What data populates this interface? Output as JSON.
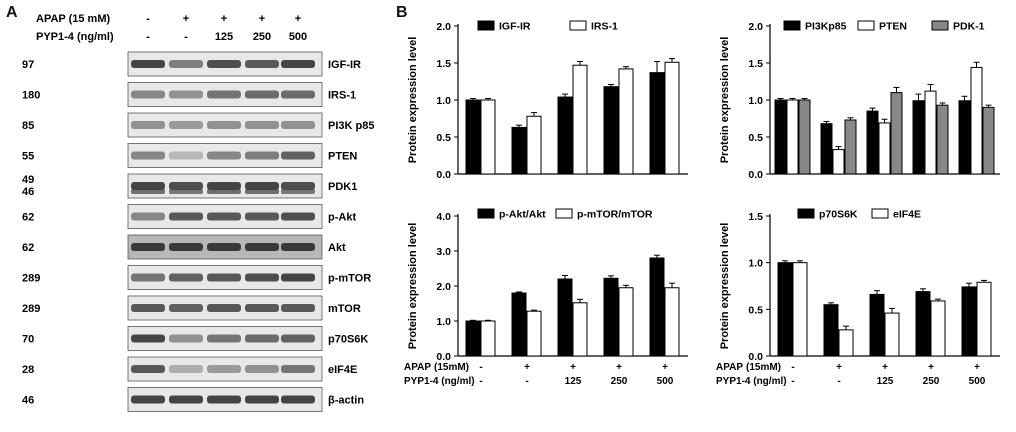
{
  "panel_a": {
    "letter": "A",
    "treatment_rows": [
      {
        "label": "APAP  (15 mM)",
        "values": [
          "-",
          "+",
          "+",
          "+",
          "+"
        ]
      },
      {
        "label": "PYP1-4 (ng/ml)",
        "values": [
          "-",
          "-",
          "125",
          "250",
          "500"
        ]
      }
    ],
    "blots": [
      {
        "mw": "97",
        "protein": "IGF-IR",
        "intensity": [
          0.85,
          0.55,
          0.8,
          0.75,
          0.85
        ]
      },
      {
        "mw": "180",
        "protein": "IRS-1",
        "intensity": [
          0.5,
          0.45,
          0.6,
          0.65,
          0.65
        ]
      },
      {
        "mw": "85",
        "protein": "PI3K p85",
        "intensity": [
          0.45,
          0.4,
          0.45,
          0.45,
          0.45
        ]
      },
      {
        "mw": "55",
        "protein": "PTEN",
        "intensity": [
          0.5,
          0.25,
          0.5,
          0.55,
          0.7
        ]
      },
      {
        "mw": "49\n46",
        "protein": "PDK1",
        "intensity": [
          0.85,
          0.8,
          0.85,
          0.85,
          0.8
        ]
      },
      {
        "mw": "62",
        "protein": "p-Akt",
        "intensity": [
          0.5,
          0.75,
          0.75,
          0.75,
          0.8
        ]
      },
      {
        "mw": "62",
        "protein": "Akt",
        "intensity": [
          0.9,
          0.9,
          0.9,
          0.9,
          0.9
        ]
      },
      {
        "mw": "289",
        "protein": "p-mTOR",
        "intensity": [
          0.6,
          0.7,
          0.75,
          0.8,
          0.85
        ]
      },
      {
        "mw": "289",
        "protein": "mTOR",
        "intensity": [
          0.75,
          0.7,
          0.75,
          0.75,
          0.75
        ]
      },
      {
        "mw": "70",
        "protein": "p70S6K",
        "intensity": [
          0.85,
          0.45,
          0.6,
          0.65,
          0.7
        ]
      },
      {
        "mw": "28",
        "protein": "eIF4E",
        "intensity": [
          0.75,
          0.3,
          0.4,
          0.45,
          0.6
        ]
      },
      {
        "mw": "46",
        "protein": "β-actin",
        "intensity": [
          0.85,
          0.85,
          0.85,
          0.85,
          0.85
        ]
      }
    ]
  },
  "panel_b": {
    "letter": "B"
  },
  "x_conditions": {
    "apap_label": "APAP",
    "apap_unit": "(15mM)",
    "apap_values": [
      "-",
      "+",
      "+",
      "+",
      "+"
    ],
    "pyp_label": "PYP1-4 (ng/ml)",
    "pyp_values": [
      "-",
      "-",
      "125",
      "250",
      "500"
    ]
  },
  "chart_data": [
    {
      "type": "bar",
      "ylabel": "Protein expression level",
      "ylim": [
        0,
        2.0
      ],
      "yticks": [
        "0.0",
        "0.5",
        "1.0",
        "1.5",
        "2.0"
      ],
      "legend_position": "top-left",
      "series": [
        {
          "name": "IGF-IR",
          "color": "#000000",
          "values": [
            1.0,
            0.63,
            1.04,
            1.18,
            1.37
          ],
          "errors": [
            0.02,
            0.03,
            0.04,
            0.03,
            0.15
          ]
        },
        {
          "name": "IRS-1",
          "color": "#ffffff",
          "values": [
            1.0,
            0.78,
            1.47,
            1.42,
            1.51
          ],
          "errors": [
            0.02,
            0.05,
            0.05,
            0.03,
            0.05
          ]
        }
      ]
    },
    {
      "type": "bar",
      "ylabel": "Protein expression level",
      "ylim": [
        0,
        2.0
      ],
      "yticks": [
        "0.0",
        "0.5",
        "1.0",
        "1.5",
        "2.0"
      ],
      "legend_position": "top",
      "series": [
        {
          "name": "PI3Kp85",
          "color": "#000000",
          "values": [
            1.0,
            0.68,
            0.85,
            0.99,
            0.99
          ],
          "errors": [
            0.02,
            0.03,
            0.04,
            0.09,
            0.06
          ]
        },
        {
          "name": "PTEN",
          "color": "#ffffff",
          "values": [
            1.0,
            0.33,
            0.69,
            1.12,
            1.44
          ],
          "errors": [
            0.02,
            0.04,
            0.05,
            0.09,
            0.07
          ]
        },
        {
          "name": "PDK-1",
          "color": "#888888",
          "values": [
            1.0,
            0.73,
            1.1,
            0.93,
            0.9
          ],
          "errors": [
            0.02,
            0.03,
            0.07,
            0.03,
            0.03
          ]
        }
      ]
    },
    {
      "type": "bar",
      "ylabel": "Protein expression level",
      "ylim": [
        0,
        4.0
      ],
      "yticks": [
        "0.0",
        "1.0",
        "2.0",
        "3.0",
        "4.0"
      ],
      "legend_position": "top-left",
      "series": [
        {
          "name": "p-Akt/Akt",
          "color": "#000000",
          "values": [
            1.0,
            1.8,
            2.2,
            2.22,
            2.8
          ],
          "errors": [
            0.02,
            0.03,
            0.1,
            0.07,
            0.08
          ]
        },
        {
          "name": "p-mTOR/mTOR",
          "color": "#ffffff",
          "values": [
            1.0,
            1.28,
            1.52,
            1.95,
            1.95
          ],
          "errors": [
            0.02,
            0.03,
            0.1,
            0.07,
            0.13
          ]
        }
      ]
    },
    {
      "type": "bar",
      "ylabel": "Protein expression level",
      "ylim": [
        0,
        1.5
      ],
      "yticks": [
        "0.0",
        "0.5",
        "1.0",
        "1.5"
      ],
      "legend_position": "top-left",
      "series": [
        {
          "name": "p70S6K",
          "color": "#000000",
          "values": [
            1.0,
            0.55,
            0.66,
            0.69,
            0.74
          ],
          "errors": [
            0.02,
            0.02,
            0.04,
            0.03,
            0.04
          ]
        },
        {
          "name": "eIF4E",
          "color": "#ffffff",
          "values": [
            1.0,
            0.28,
            0.46,
            0.59,
            0.79
          ],
          "errors": [
            0.02,
            0.04,
            0.05,
            0.02,
            0.02
          ]
        }
      ]
    }
  ]
}
